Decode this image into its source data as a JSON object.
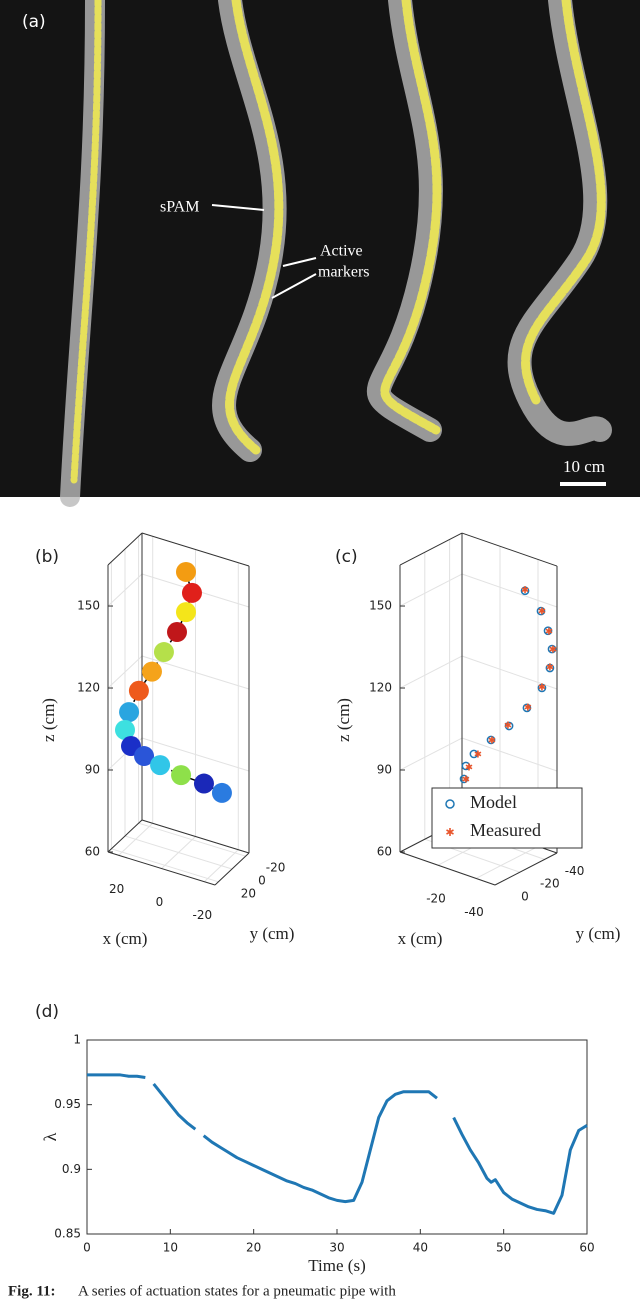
{
  "figure": {
    "panel_a": {
      "label": "(a)",
      "annotations": [
        "sPAM",
        "Active",
        "markers"
      ],
      "scale_bar": "10 cm"
    },
    "caption": {
      "label": "Fig. 11:",
      "text": "A series of actuation states for a pneumatic pipe with"
    }
  },
  "chart_data": [
    {
      "type": "scatter3d",
      "panel_label": "(b)",
      "xlabel": "x (cm)",
      "ylabel": "y (cm)",
      "zlabel": "z (cm)",
      "xlim": [
        -25,
        25
      ],
      "ylim": [
        -25,
        25
      ],
      "zlim": [
        60,
        165
      ],
      "xticks": [
        20,
        0,
        -20
      ],
      "yticks": [
        -20,
        0,
        20
      ],
      "zticks": [
        60,
        90,
        120,
        150
      ],
      "grid": true,
      "connect": true,
      "series": [
        {
          "x": [
            -3.5,
            -6.3,
            -3.5,
            0.7,
            6.8,
            12.4,
            18.5,
            23.1,
            25.0,
            22.2,
            16.1,
            8.6,
            -1.2,
            -11.9,
            -20.3
          ],
          "y": [
            0,
            0,
            0,
            0,
            0,
            0,
            0,
            0,
            0,
            0,
            0,
            0,
            0,
            0,
            0
          ],
          "z": [
            163.5,
            156.5,
            148.8,
            140.5,
            131.7,
            123.2,
            114.7,
            105.8,
            98.8,
            93.6,
            91.4,
            89.9,
            88.6,
            88.1,
            86.7
          ],
          "colors": [
            "#f39c12",
            "#e0201b",
            "#f4e51a",
            "#c0171a",
            "#b5e04a",
            "#f5a31b",
            "#ee5a1c",
            "#2aa5e0",
            "#3de0e0",
            "#1a2fc8",
            "#2a55d8",
            "#31c6e8",
            "#8ee04a",
            "#1a28b8",
            "#2a7be0"
          ]
        }
      ]
    },
    {
      "type": "scatter3d",
      "panel_label": "(c)",
      "xlabel": "x (cm)",
      "ylabel": "y (cm)",
      "zlabel": "z (cm)",
      "xlim": [
        -50,
        0
      ],
      "ylim": [
        -50,
        0
      ],
      "zlim": [
        60,
        165
      ],
      "xticks": [
        -20,
        -40
      ],
      "yticks": [
        -40,
        -20,
        0
      ],
      "zticks": [
        60,
        90,
        120,
        150
      ],
      "grid": true,
      "legend": "lower right",
      "series": [
        {
          "name": "Model",
          "color": "#1f77b4",
          "marker": "circle",
          "x": [
            -39.7,
            -48.1,
            -51.8,
            -53.9,
            -52.8,
            -48.6,
            -40.7,
            -31.3,
            -21.8,
            -12.8,
            -8.6,
            -7.6,
            -9.2,
            -14.4,
            -23.4
          ],
          "y": [
            -40,
            -40,
            -40,
            -40,
            -40,
            -40,
            -40,
            -40,
            -40,
            -40,
            -40,
            -40,
            -40,
            -40,
            -40
          ],
          "z": [
            155.8,
            150.4,
            144.1,
            137.9,
            130.7,
            122.4,
            113.2,
            104.3,
            96.9,
            89.6,
            84.2,
            79.2,
            74.5,
            70.6,
            68.0
          ]
        },
        {
          "name": "Measured",
          "color": "#e8542a",
          "marker": "star",
          "x": [
            -39.7,
            -48.6,
            -52.3,
            -54.4,
            -52.8,
            -48.6,
            -41.2,
            -30.7,
            -22.3,
            -14.9,
            -10.2,
            -8.6,
            -10.2,
            -14.4,
            -20.2
          ],
          "y": [
            -40,
            -40,
            -40,
            -40,
            -40,
            -40,
            -40,
            -40,
            -40,
            -40,
            -40,
            -40,
            -40,
            -40,
            -40
          ],
          "z": [
            156.2,
            150.6,
            144.1,
            138.0,
            131.1,
            122.8,
            113.6,
            104.5,
            97.0,
            90.1,
            84.2,
            79.4,
            75.0,
            71.0,
            69.0
          ]
        }
      ]
    },
    {
      "type": "line",
      "panel_label": "(d)",
      "xlabel": "Time (s)",
      "ylabel": "λ",
      "xlim": [
        0,
        60
      ],
      "ylim": [
        0.85,
        1
      ],
      "xticks": [
        0,
        10,
        20,
        30,
        40,
        50,
        60
      ],
      "yticks": [
        0.85,
        0.9,
        0.95,
        1
      ],
      "color": "#1f77b4",
      "x": [
        0,
        1,
        2,
        3,
        4,
        5,
        6,
        7,
        7.5,
        8,
        9,
        10,
        11,
        12,
        13,
        13.5,
        14,
        15,
        16,
        17,
        18,
        19,
        20,
        21,
        22,
        23,
        24,
        25,
        26,
        27,
        28,
        29,
        30,
        31,
        32,
        33,
        34,
        35,
        36,
        37,
        38,
        39,
        40,
        41,
        42,
        43,
        44,
        45,
        46,
        47,
        48,
        48.5,
        49,
        50,
        51,
        52,
        53,
        54,
        55,
        56,
        57,
        58,
        59,
        60
      ],
      "values": [
        0.973,
        0.973,
        0.973,
        0.973,
        0.973,
        0.972,
        0.972,
        0.971,
        null,
        0.966,
        0.958,
        0.95,
        0.942,
        0.936,
        0.931,
        null,
        0.926,
        0.921,
        0.917,
        0.913,
        0.909,
        0.906,
        0.903,
        0.9,
        0.897,
        0.894,
        0.891,
        0.889,
        0.886,
        0.884,
        0.881,
        0.878,
        0.876,
        0.875,
        0.876,
        0.89,
        0.915,
        0.94,
        0.953,
        0.958,
        0.96,
        0.96,
        0.96,
        0.96,
        0.955,
        null,
        0.94,
        0.927,
        0.915,
        0.905,
        0.893,
        0.89,
        0.892,
        0.882,
        0.877,
        0.874,
        0.871,
        0.869,
        0.868,
        0.866,
        0.88,
        0.915,
        0.93,
        0.934
      ]
    }
  ]
}
